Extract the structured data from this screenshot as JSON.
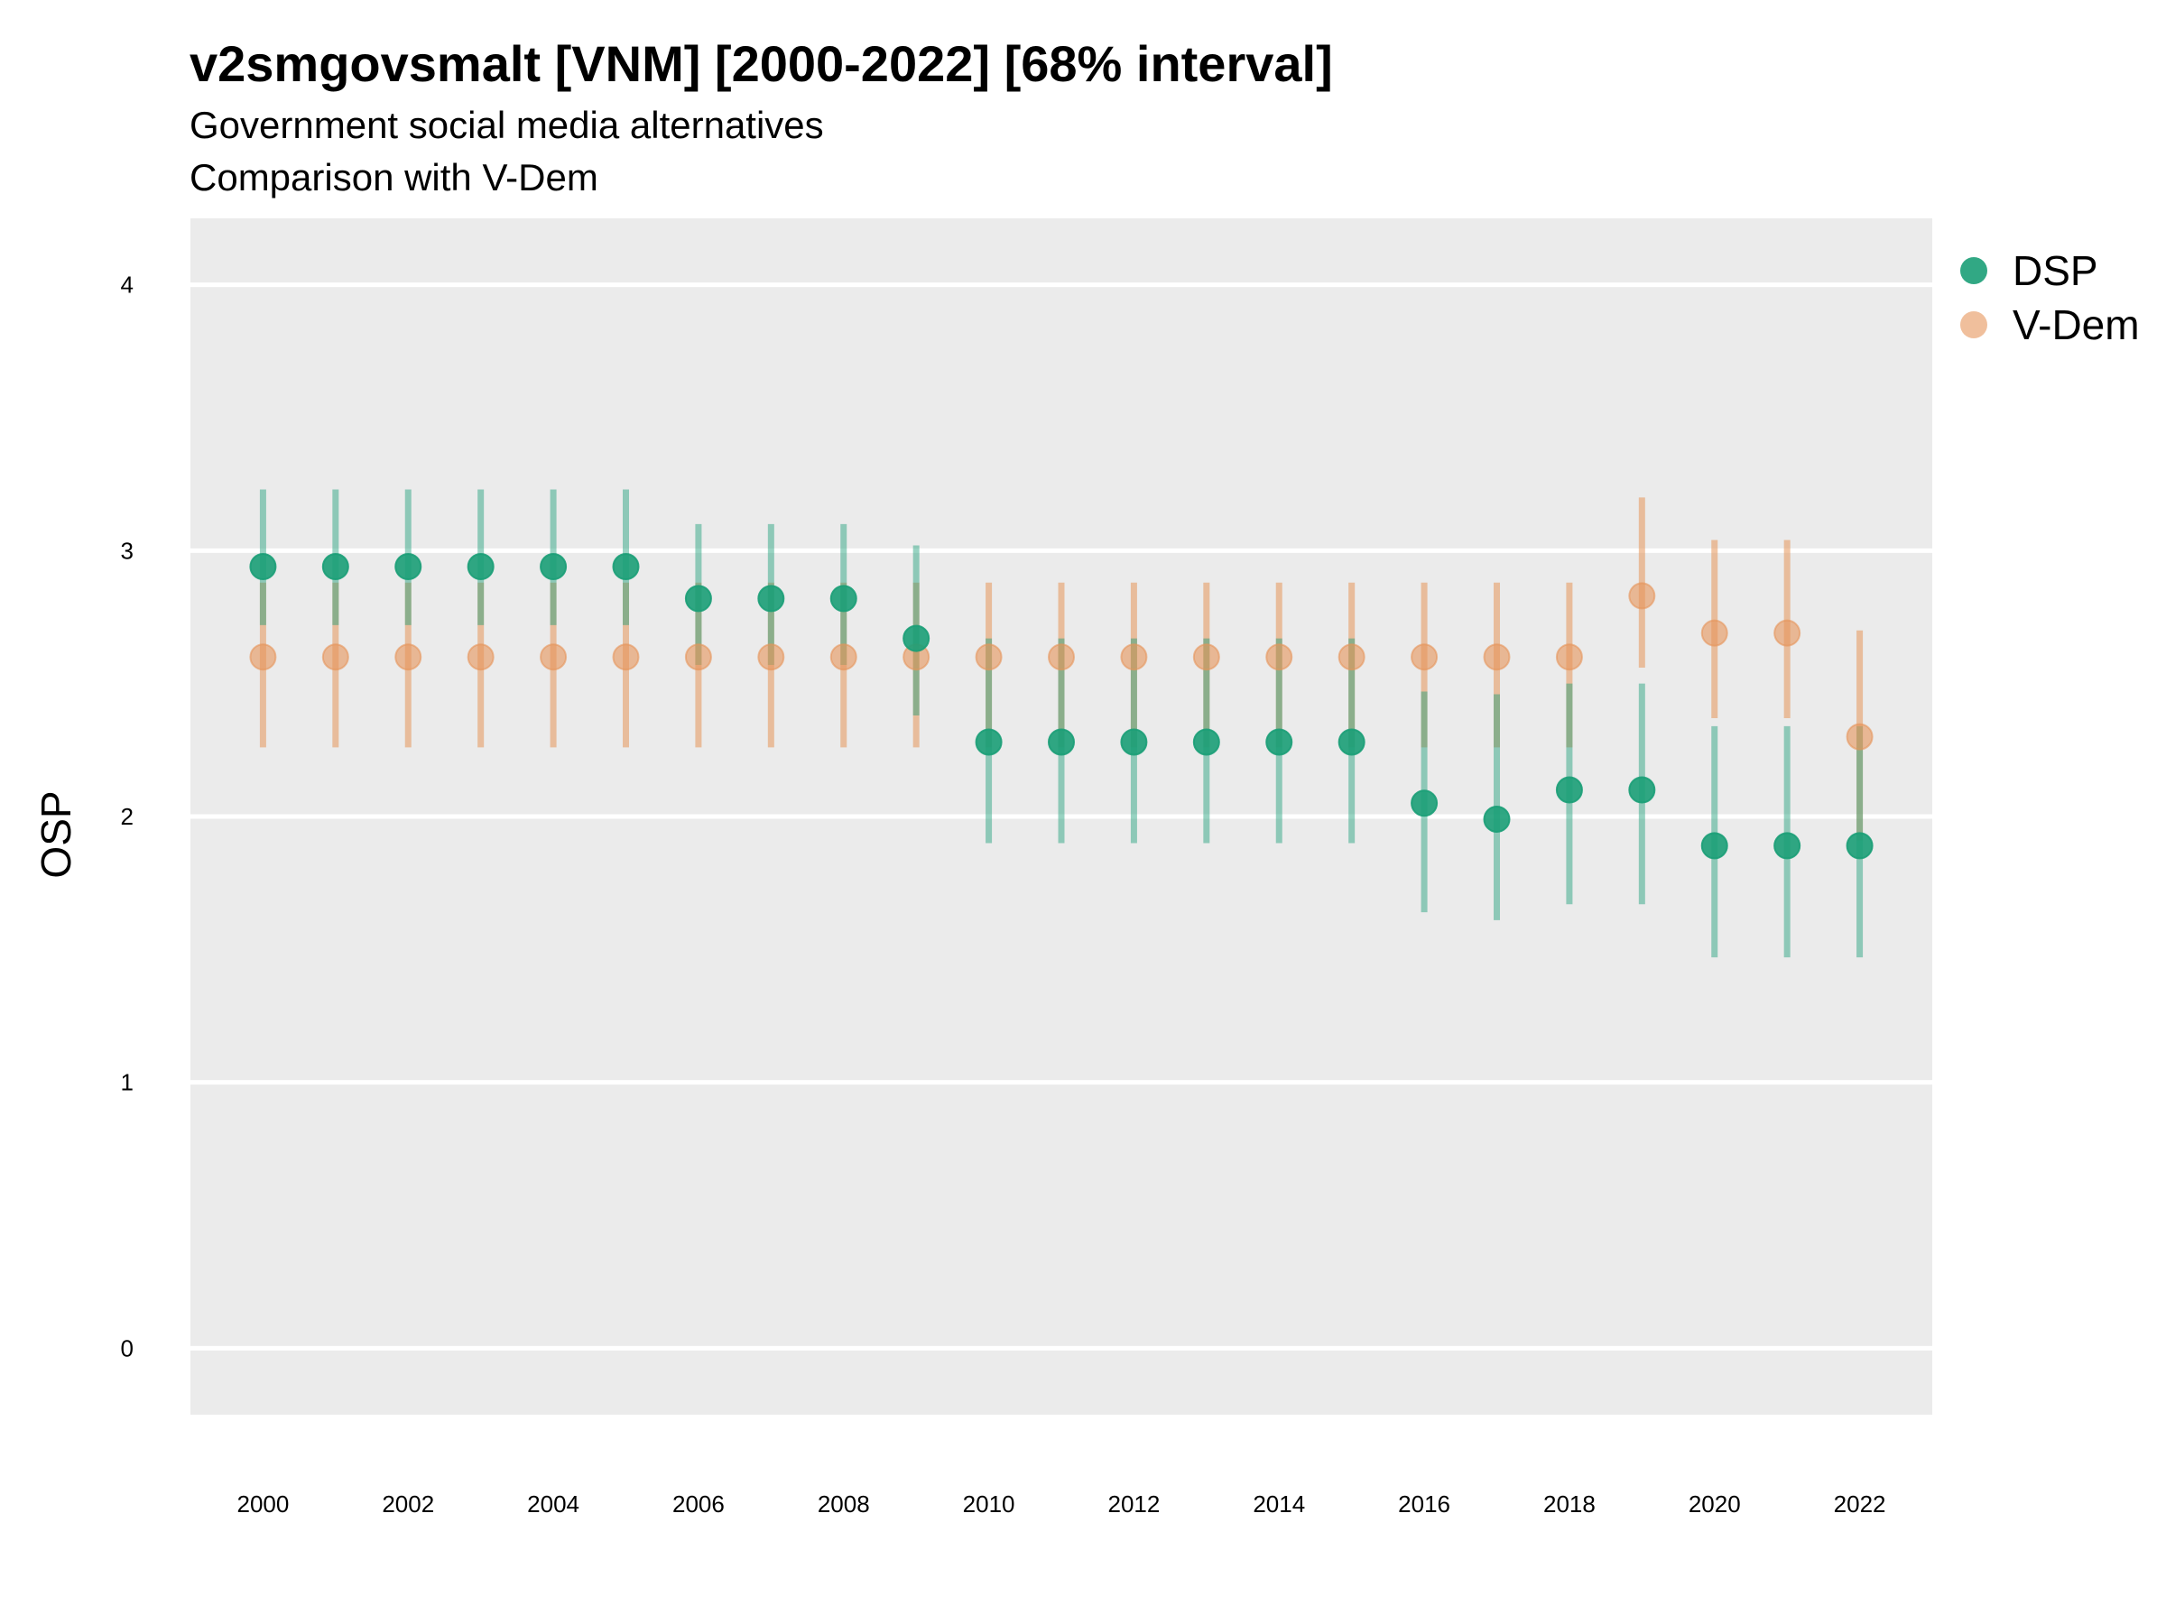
{
  "title": "v2smgovsmalt [VNM] [2000-2022] [68% interval]",
  "subtitle_line1": "Government social media alternatives",
  "subtitle_line2": "Comparison with V-Dem",
  "colors": {
    "dsp": "#1b9e77",
    "vdem": "#e6955a",
    "panel": "#ebebeb",
    "grid": "#ffffff"
  },
  "chart_data": {
    "type": "scatter",
    "title": "v2smgovsmalt [VNM] [2000-2022] [68% interval]",
    "ylabel": "OSP",
    "xlabel": "",
    "ylim": [
      -0.25,
      4.25
    ],
    "yticks": [
      0,
      1,
      2,
      3,
      4
    ],
    "xticks": [
      2000,
      2002,
      2004,
      2006,
      2008,
      2010,
      2012,
      2014,
      2016,
      2018,
      2020,
      2022
    ],
    "xlim": [
      1999,
      2023
    ],
    "grid": true,
    "legend": "right",
    "x": [
      2000,
      2001,
      2002,
      2003,
      2004,
      2005,
      2006,
      2007,
      2008,
      2009,
      2010,
      2011,
      2012,
      2013,
      2014,
      2015,
      2016,
      2017,
      2018,
      2019,
      2020,
      2021,
      2022
    ],
    "series": [
      {
        "name": "DSP",
        "values": [
          2.94,
          2.94,
          2.94,
          2.94,
          2.94,
          2.94,
          2.82,
          2.82,
          2.82,
          2.67,
          2.28,
          2.28,
          2.28,
          2.28,
          2.28,
          2.28,
          2.05,
          1.99,
          2.1,
          2.1,
          1.89,
          1.89,
          1.89
        ],
        "lower": [
          2.72,
          2.72,
          2.72,
          2.72,
          2.72,
          2.72,
          2.57,
          2.57,
          2.57,
          2.38,
          1.9,
          1.9,
          1.9,
          1.9,
          1.9,
          1.9,
          1.64,
          1.61,
          1.67,
          1.67,
          1.47,
          1.47,
          1.47
        ],
        "upper": [
          3.23,
          3.23,
          3.23,
          3.23,
          3.23,
          3.23,
          3.1,
          3.1,
          3.1,
          3.02,
          2.67,
          2.67,
          2.67,
          2.67,
          2.67,
          2.67,
          2.47,
          2.46,
          2.5,
          2.5,
          2.34,
          2.34,
          2.34
        ]
      },
      {
        "name": "V-Dem",
        "values": [
          2.6,
          2.6,
          2.6,
          2.6,
          2.6,
          2.6,
          2.6,
          2.6,
          2.6,
          2.6,
          2.6,
          2.6,
          2.6,
          2.6,
          2.6,
          2.6,
          2.6,
          2.6,
          2.6,
          2.83,
          2.69,
          2.69,
          2.3
        ],
        "lower": [
          2.26,
          2.26,
          2.26,
          2.26,
          2.26,
          2.26,
          2.26,
          2.26,
          2.26,
          2.26,
          2.26,
          2.26,
          2.26,
          2.26,
          2.26,
          2.26,
          2.26,
          2.26,
          2.26,
          2.56,
          2.37,
          2.37,
          1.91
        ],
        "upper": [
          2.88,
          2.88,
          2.88,
          2.88,
          2.88,
          2.88,
          2.88,
          2.88,
          2.88,
          2.88,
          2.88,
          2.88,
          2.88,
          2.88,
          2.88,
          2.88,
          2.88,
          2.88,
          2.88,
          3.2,
          3.04,
          3.04,
          2.7
        ]
      }
    ]
  },
  "legend_items": [
    {
      "label": "DSP",
      "color": "#1b9e77"
    },
    {
      "label": "V-Dem",
      "color": "#e6955a"
    }
  ]
}
